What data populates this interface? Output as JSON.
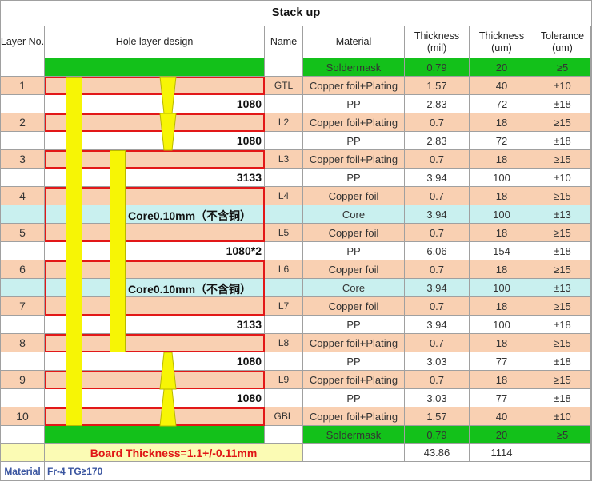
{
  "title": "Stack up",
  "headers": {
    "layer_no": "Layer No.",
    "hole_design": "Hole layer design",
    "name": "Name",
    "material": "Material",
    "thickness_mil": "Thickness\n(mil)",
    "thickness_um": "Thickness\n(um)",
    "tolerance": "Tolerance\n(um)"
  },
  "rows": [
    {
      "layer": "",
      "pp": "",
      "name": "",
      "material": "Soldermask",
      "mil": "0.79",
      "um": "20",
      "tol": "≥5",
      "color": "#13c11a"
    },
    {
      "layer": "1",
      "pp": "",
      "name": "GTL",
      "material": "Copper foil+Plating",
      "mil": "1.57",
      "um": "40",
      "tol": "±10",
      "color": "#f9d0b2"
    },
    {
      "layer": "",
      "pp": "1080",
      "name": "",
      "material": "PP",
      "mil": "2.83",
      "um": "72",
      "tol": "±18",
      "color": "#ffffff"
    },
    {
      "layer": "2",
      "pp": "",
      "name": "L2",
      "material": "Copper foil+Plating",
      "mil": "0.7",
      "um": "18",
      "tol": "≥15",
      "color": "#f9d0b2"
    },
    {
      "layer": "",
      "pp": "1080",
      "name": "",
      "material": "PP",
      "mil": "2.83",
      "um": "72",
      "tol": "±18",
      "color": "#ffffff"
    },
    {
      "layer": "3",
      "pp": "",
      "name": "L3",
      "material": "Copper foil+Plating",
      "mil": "0.7",
      "um": "18",
      "tol": "≥15",
      "color": "#f9d0b2"
    },
    {
      "layer": "",
      "pp": "3133",
      "name": "",
      "material": "PP",
      "mil": "3.94",
      "um": "100",
      "tol": "±10",
      "color": "#ffffff"
    },
    {
      "layer": "4",
      "pp": "",
      "name": "L4",
      "material": "Copper foil",
      "mil": "0.7",
      "um": "18",
      "tol": "≥15",
      "color": "#f9d0b2"
    },
    {
      "layer": "",
      "pp": "",
      "name": "",
      "material": "Core",
      "mil": "3.94",
      "um": "100",
      "tol": "±13",
      "color": "#c9f0ef"
    },
    {
      "layer": "5",
      "pp": "",
      "name": "L5",
      "material": "Copper foil",
      "mil": "0.7",
      "um": "18",
      "tol": "≥15",
      "color": "#f9d0b2"
    },
    {
      "layer": "",
      "pp": "1080*2",
      "name": "",
      "material": "PP",
      "mil": "6.06",
      "um": "154",
      "tol": "±18",
      "color": "#ffffff"
    },
    {
      "layer": "6",
      "pp": "",
      "name": "L6",
      "material": "Copper foil",
      "mil": "0.7",
      "um": "18",
      "tol": "≥15",
      "color": "#f9d0b2"
    },
    {
      "layer": "",
      "pp": "",
      "name": "",
      "material": "Core",
      "mil": "3.94",
      "um": "100",
      "tol": "±13",
      "color": "#c9f0ef"
    },
    {
      "layer": "7",
      "pp": "",
      "name": "L7",
      "material": "Copper foil",
      "mil": "0.7",
      "um": "18",
      "tol": "≥15",
      "color": "#f9d0b2"
    },
    {
      "layer": "",
      "pp": "3133",
      "name": "",
      "material": "PP",
      "mil": "3.94",
      "um": "100",
      "tol": "±18",
      "color": "#ffffff"
    },
    {
      "layer": "8",
      "pp": "",
      "name": "L8",
      "material": "Copper foil+Plating",
      "mil": "0.7",
      "um": "18",
      "tol": "≥15",
      "color": "#f9d0b2"
    },
    {
      "layer": "",
      "pp": "1080",
      "name": "",
      "material": "PP",
      "mil": "3.03",
      "um": "77",
      "tol": "±18",
      "color": "#ffffff"
    },
    {
      "layer": "9",
      "pp": "",
      "name": "L9",
      "material": "Copper foil+Plating",
      "mil": "0.7",
      "um": "18",
      "tol": "≥15",
      "color": "#f9d0b2"
    },
    {
      "layer": "",
      "pp": "1080",
      "name": "",
      "material": "PP",
      "mil": "3.03",
      "um": "77",
      "tol": "±18",
      "color": "#ffffff"
    },
    {
      "layer": "10",
      "pp": "",
      "name": "GBL",
      "material": "Copper foil+Plating",
      "mil": "1.57",
      "um": "40",
      "tol": "±10",
      "color": "#f9d0b2"
    },
    {
      "layer": "",
      "pp": "",
      "name": "",
      "material": "Soldermask",
      "mil": "0.79",
      "um": "20",
      "tol": "≥5",
      "color": "#13c11a"
    }
  ],
  "cores": [
    "Core0.10mm（不含铜）",
    "Core0.10mm（不含铜）"
  ],
  "board_thickness": "Board Thickness=1.1+/-0.11mm",
  "totals": {
    "mil": "43.86",
    "um": "1114"
  },
  "footer": {
    "label": "Material",
    "value": "Fr-4  TG≥170"
  },
  "colors": {
    "via": "#f7f505",
    "outline": "#e21818",
    "soldermask": "#13c11a",
    "copper": "#f9d0b2",
    "core": "#c9f0ef"
  }
}
